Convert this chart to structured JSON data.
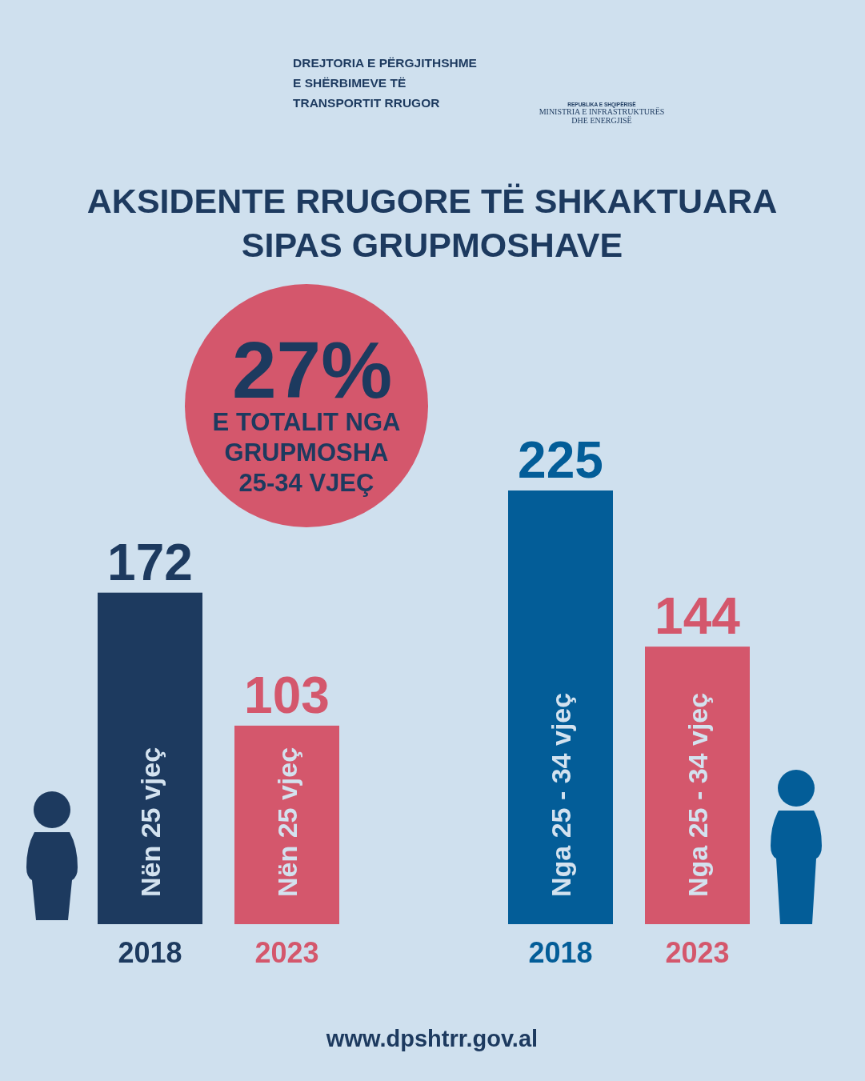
{
  "chart_data": {
    "type": "bar",
    "title": "AKSIDENTE RRUGORE TË SHKAKTUARA SIPAS GRUPMOSHAVE",
    "categories": [
      "Nën 25 vjeç",
      "Nga 25 - 34 vjeç"
    ],
    "series": [
      {
        "name": "2018",
        "colors": [
          "#1d3a5f",
          "#035d98"
        ],
        "values": [
          172,
          225
        ]
      },
      {
        "name": "2023",
        "color": "#d4576c",
        "values": [
          103,
          144
        ]
      }
    ],
    "data_labels": true,
    "annotations": [
      "27%",
      "E TOTALIT NGA GRUPMOSHA 25-34 VJEÇ",
      "DREJTORIA E PËRGJITHSHME E SHËRBIMEVE TË TRANSPORTIT RRUGOR",
      "REPUBLIKA E SHQIPËRISË",
      "MINISTRIA E INFRASTRUKTURËS DHE ENERGJISË",
      "www.dpshtrr.gov.al"
    ]
  }
}
